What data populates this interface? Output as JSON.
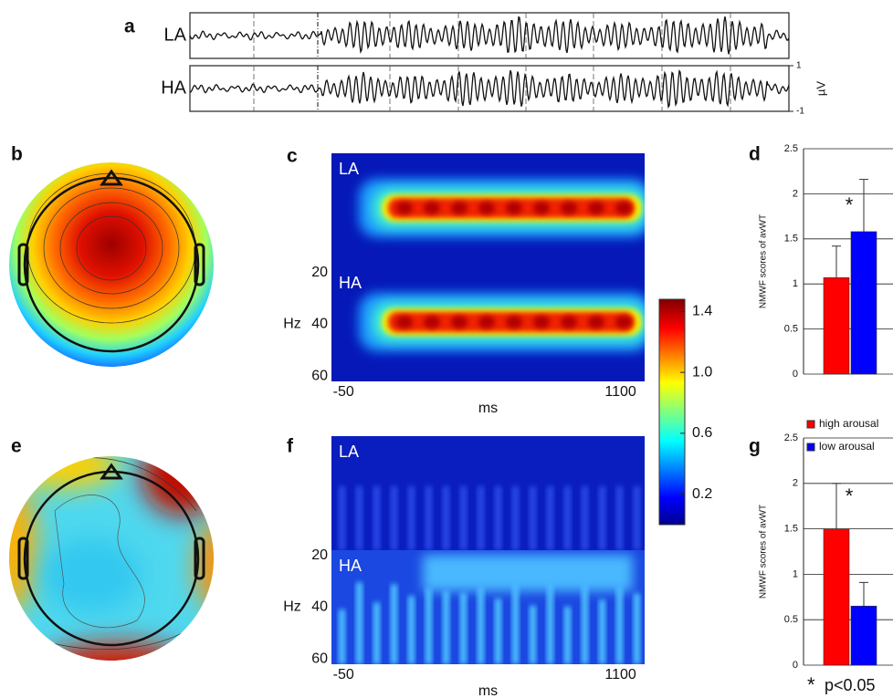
{
  "chart_data": [
    {
      "type": "waveform",
      "panel_label": "a",
      "rows": [
        "LA",
        "HA"
      ],
      "ylim": [
        -1,
        1
      ],
      "yticks": [
        1,
        -1
      ],
      "unit": "µV"
    },
    {
      "type": "topomap",
      "panel_label": "b"
    },
    {
      "type": "heatmap",
      "panel_label": "c",
      "rows": [
        "LA",
        "HA"
      ],
      "xlim": [
        -100,
        1200
      ],
      "xticks": [
        -50,
        1100
      ],
      "ylim": [
        18,
        62
      ],
      "yticks": [
        20,
        40,
        60
      ],
      "xlabel": "ms",
      "ylabel": "Hz"
    },
    {
      "type": "colorbar",
      "ylim": [
        0,
        1.48
      ],
      "yticks": [
        0.2,
        0.6,
        {
          "value": 1,
          "label": "1.0"
        },
        1.4
      ]
    },
    {
      "type": "bar",
      "panel_label": "d",
      "ylabel": "NMWF scores of avWT",
      "ylim": [
        0,
        2.5
      ],
      "yticks": [
        0,
        0.5,
        1,
        1.5,
        2,
        2.5
      ],
      "grid": true,
      "legend": true,
      "annotation": "*",
      "series": [
        {
          "name": "high arousal",
          "color": "#ff0000",
          "values": [
            1.07
          ],
          "errors": [
            0.35
          ]
        },
        {
          "name": "low arousal",
          "color": "#0000ff",
          "values": [
            1.58
          ],
          "errors": [
            0.58
          ]
        }
      ]
    },
    {
      "type": "topomap",
      "panel_label": "e"
    },
    {
      "type": "heatmap",
      "panel_label": "f",
      "rows": [
        "LA",
        "HA"
      ],
      "xlim": [
        -100,
        1200
      ],
      "xticks": [
        -50,
        1100
      ],
      "ylim": [
        18,
        62
      ],
      "yticks": [
        20,
        40,
        60
      ],
      "xlabel": "ms",
      "ylabel": "Hz"
    },
    {
      "type": "bar",
      "panel_label": "g",
      "ylabel": "NMWF scores of avWT",
      "ylim": [
        0,
        2.5
      ],
      "yticks": [
        0,
        0.5,
        1,
        1.5,
        2,
        2.5
      ],
      "grid": true,
      "legend": false,
      "annotation": "*",
      "footnote_symbol": "*",
      "footnote": "p<0.05",
      "series": [
        {
          "name": "high arousal",
          "color": "#ff0000",
          "values": [
            1.5
          ],
          "errors": [
            0.5
          ]
        },
        {
          "name": "low arousal",
          "color": "#0000ff",
          "values": [
            0.65
          ],
          "errors": [
            0.26
          ]
        }
      ]
    }
  ]
}
